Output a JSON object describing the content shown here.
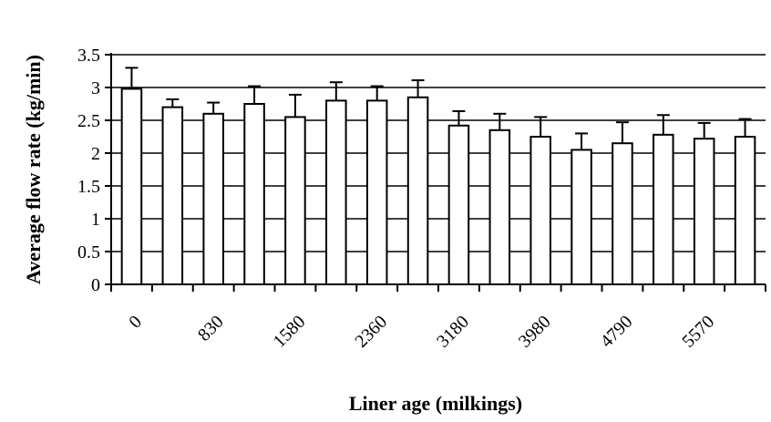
{
  "chart_data": {
    "type": "bar",
    "title": "",
    "xlabel": "Liner age (milkings)",
    "ylabel": "Average flow rate (kg/min)",
    "ylim": [
      0,
      3.5
    ],
    "yticks": [
      "0",
      "0.5",
      "1",
      "1.5",
      "2",
      "2.5",
      "3",
      "3.5"
    ],
    "xtick_labels": [
      "0",
      "830",
      "1580",
      "2360",
      "3180",
      "3980",
      "4790",
      "5570"
    ],
    "grid": "horizontal",
    "values": [
      2.98,
      2.7,
      2.6,
      2.75,
      2.55,
      2.8,
      2.8,
      2.85,
      2.42,
      2.35,
      2.25,
      2.05,
      2.15,
      2.28,
      2.22,
      2.25
    ],
    "error_upper": [
      0.32,
      0.12,
      0.17,
      0.27,
      0.34,
      0.28,
      0.22,
      0.26,
      0.22,
      0.25,
      0.3,
      0.25,
      0.32,
      0.3,
      0.24,
      0.27
    ],
    "colors": {
      "bar_fill": "#ffffff",
      "bar_stroke": "#000000"
    }
  }
}
